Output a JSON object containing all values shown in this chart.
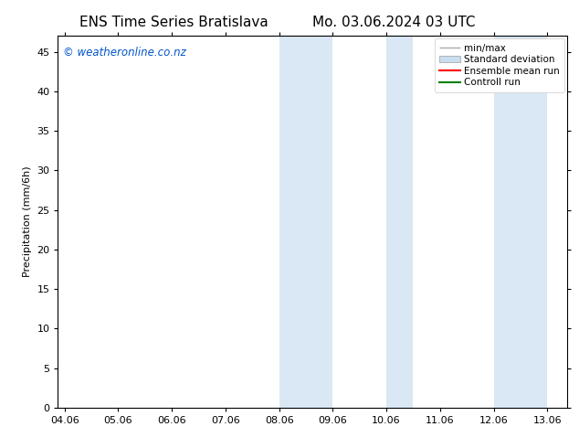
{
  "title_left": "ENS Time Series Bratislava",
  "title_right": "Mo. 03.06.2024 03 UTC",
  "ylabel": "Precipitation (mm/6h)",
  "background_color": "#ffffff",
  "plot_bg_color": "#ffffff",
  "x_tick_labels": [
    "04.06",
    "05.06",
    "06.06",
    "07.06",
    "08.06",
    "09.06",
    "10.06",
    "11.06",
    "12.06",
    "13.06"
  ],
  "x_tick_positions": [
    0,
    4,
    8,
    12,
    16,
    20,
    24,
    28,
    32,
    36
  ],
  "ylim": [
    0,
    47
  ],
  "yticks": [
    0,
    5,
    10,
    15,
    20,
    25,
    30,
    35,
    40,
    45
  ],
  "xlim": [
    -0.5,
    37.5
  ],
  "shaded_regions": [
    {
      "x_start": 16,
      "x_end": 20,
      "color": "#dae8f5"
    },
    {
      "x_start": 24,
      "x_end": 26,
      "color": "#dae8f5"
    },
    {
      "x_start": 32,
      "x_end": 36,
      "color": "#dae8f5"
    }
  ],
  "legend_labels": [
    "min/max",
    "Standard deviation",
    "Ensemble mean run",
    "Controll run"
  ],
  "legend_colors": [
    "#aaaaaa",
    "#c8ddef",
    "#ff0000",
    "#008000"
  ],
  "watermark_text": "© weatheronline.co.nz",
  "watermark_color": "#0055cc",
  "watermark_fontsize": 8.5,
  "title_fontsize": 11,
  "axis_label_fontsize": 8,
  "tick_fontsize": 8,
  "legend_fontsize": 7.5
}
